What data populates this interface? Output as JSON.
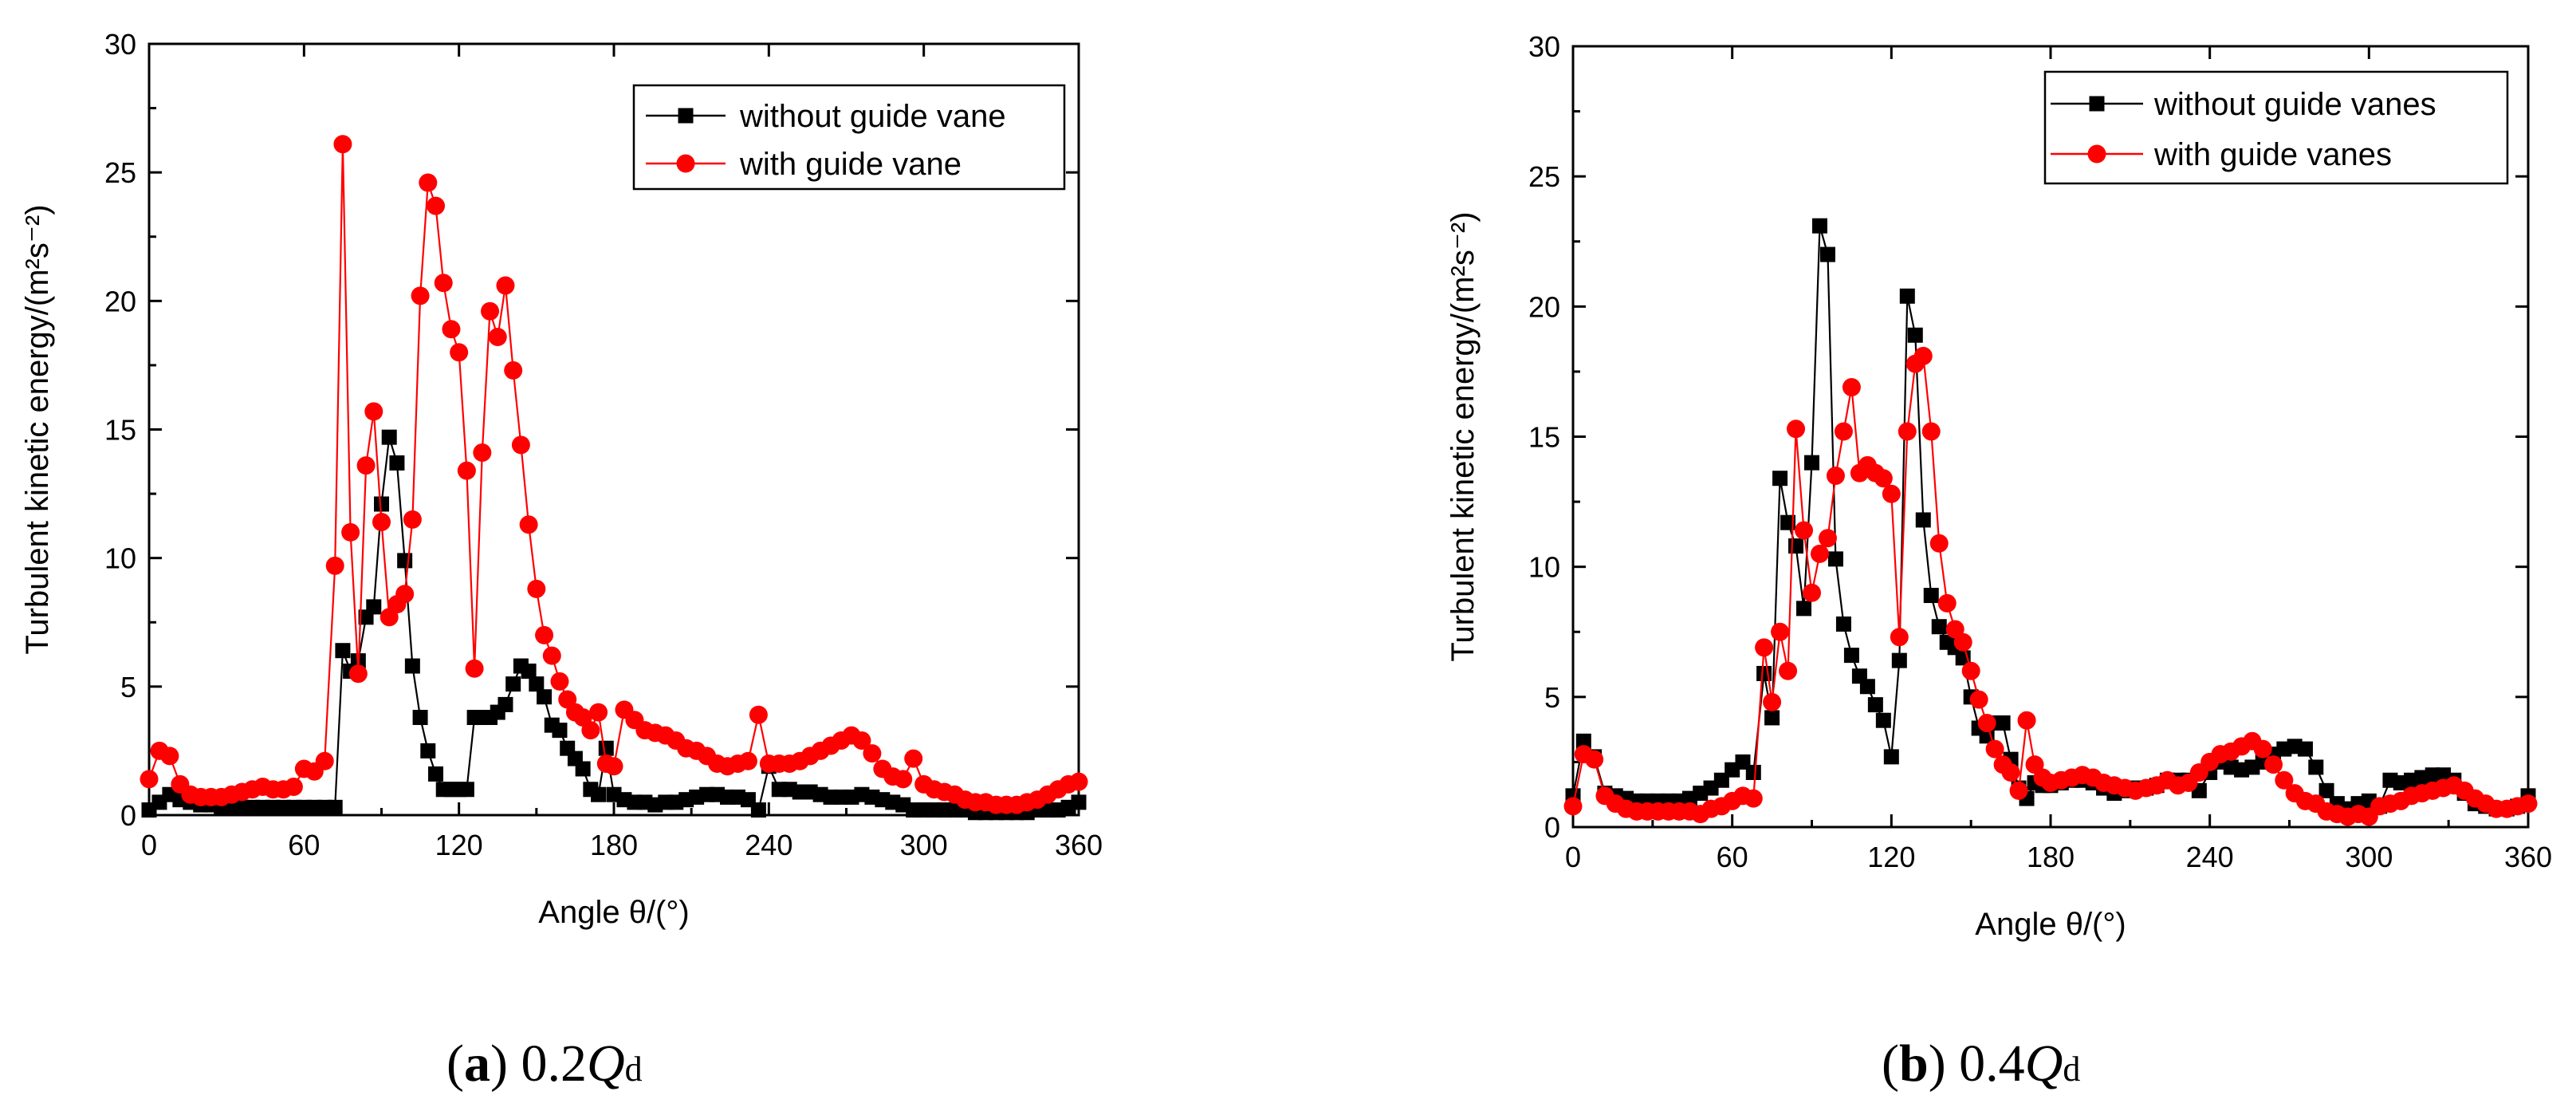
{
  "chart_data": [
    {
      "type": "line",
      "panel": "a",
      "caption": {
        "letter": "a",
        "prefix": "0.2",
        "q": "Q",
        "sub": "d"
      },
      "xlabel": "Angle θ/(°)",
      "ylabel": "Turbulent kinetic energy/(m²s⁻²)",
      "xlim": [
        0,
        360
      ],
      "ylim": [
        0,
        30
      ],
      "xticks": [
        "0",
        "60",
        "120",
        "180",
        "240",
        "300",
        "360"
      ],
      "yticks": [
        "0",
        "5",
        "10",
        "15",
        "20",
        "25",
        "30"
      ],
      "legend_position": "top-right",
      "series": [
        {
          "name": "without guide vane",
          "color": "#000000",
          "marker": "square",
          "x": [
            0,
            4,
            8,
            12,
            16,
            20,
            24,
            28,
            32,
            36,
            40,
            44,
            48,
            52,
            56,
            60,
            64,
            68,
            72,
            75,
            78,
            81,
            84,
            87,
            90,
            93,
            96,
            99,
            102,
            105,
            108,
            111,
            114,
            117,
            120,
            123,
            126,
            129,
            132,
            135,
            138,
            141,
            144,
            147,
            150,
            153,
            156,
            159,
            162,
            165,
            168,
            171,
            174,
            177,
            180,
            184,
            188,
            192,
            196,
            200,
            204,
            208,
            212,
            216,
            220,
            224,
            228,
            232,
            236,
            240,
            244,
            248,
            252,
            256,
            260,
            264,
            268,
            272,
            276,
            280,
            284,
            288,
            292,
            296,
            300,
            304,
            308,
            312,
            316,
            320,
            324,
            328,
            332,
            336,
            340,
            344,
            348,
            352,
            356,
            360
          ],
          "y": [
            0.2,
            0.5,
            0.8,
            0.6,
            0.5,
            0.4,
            0.4,
            0.3,
            0.3,
            0.3,
            0.3,
            0.3,
            0.3,
            0.3,
            0.3,
            0.3,
            0.3,
            0.3,
            0.3,
            6.4,
            5.6,
            6.0,
            7.7,
            8.1,
            12.1,
            14.7,
            13.7,
            9.9,
            5.8,
            3.8,
            2.5,
            1.6,
            1.0,
            1.0,
            1.0,
            1.0,
            3.8,
            3.8,
            3.8,
            4.0,
            4.3,
            5.1,
            5.8,
            5.6,
            5.1,
            4.6,
            3.5,
            3.3,
            2.6,
            2.2,
            1.8,
            1.0,
            0.8,
            2.6,
            0.8,
            0.6,
            0.5,
            0.5,
            0.4,
            0.5,
            0.5,
            0.6,
            0.7,
            0.8,
            0.8,
            0.7,
            0.7,
            0.6,
            0.2,
            1.9,
            1.0,
            1.0,
            0.9,
            0.9,
            0.8,
            0.7,
            0.7,
            0.7,
            0.8,
            0.7,
            0.6,
            0.5,
            0.4,
            0.2,
            0.2,
            0.2,
            0.2,
            0.2,
            0.2,
            0.1,
            0.1,
            0.1,
            0.1,
            0.1,
            0.1,
            0.2,
            0.2,
            0.2,
            0.3,
            0.5
          ]
        },
        {
          "name": "with guide vane",
          "color": "#ff0000",
          "marker": "circle",
          "x": [
            0,
            4,
            8,
            12,
            16,
            20,
            24,
            28,
            32,
            36,
            40,
            44,
            48,
            52,
            56,
            60,
            64,
            68,
            72,
            75,
            78,
            81,
            84,
            87,
            90,
            93,
            96,
            99,
            102,
            105,
            108,
            111,
            114,
            117,
            120,
            123,
            126,
            129,
            132,
            135,
            138,
            141,
            144,
            147,
            150,
            153,
            156,
            159,
            162,
            165,
            168,
            171,
            174,
            177,
            180,
            184,
            188,
            192,
            196,
            200,
            204,
            208,
            212,
            216,
            220,
            224,
            228,
            232,
            236,
            240,
            244,
            248,
            252,
            256,
            260,
            264,
            268,
            272,
            276,
            280,
            284,
            288,
            292,
            296,
            300,
            304,
            308,
            312,
            316,
            320,
            324,
            328,
            332,
            336,
            340,
            344,
            348,
            352,
            356,
            360
          ],
          "y": [
            1.4,
            2.5,
            2.3,
            1.2,
            0.8,
            0.7,
            0.7,
            0.7,
            0.8,
            0.9,
            1.0,
            1.1,
            1.0,
            1.0,
            1.1,
            1.8,
            1.7,
            2.1,
            9.7,
            26.1,
            11.0,
            5.5,
            13.6,
            15.7,
            11.4,
            7.7,
            8.2,
            8.6,
            11.5,
            20.2,
            24.6,
            23.7,
            20.7,
            18.9,
            18.0,
            13.4,
            5.7,
            14.1,
            19.6,
            18.6,
            20.6,
            17.3,
            14.4,
            11.3,
            8.8,
            7.0,
            6.2,
            5.2,
            4.5,
            4.0,
            3.8,
            3.3,
            4.0,
            2.0,
            1.9,
            4.1,
            3.7,
            3.3,
            3.2,
            3.1,
            2.9,
            2.6,
            2.5,
            2.3,
            2.0,
            1.9,
            2.0,
            2.1,
            3.9,
            2.0,
            2.0,
            2.0,
            2.1,
            2.3,
            2.5,
            2.7,
            2.9,
            3.1,
            2.9,
            2.4,
            1.8,
            1.5,
            1.4,
            2.2,
            1.2,
            1.0,
            0.9,
            0.8,
            0.6,
            0.5,
            0.5,
            0.4,
            0.4,
            0.4,
            0.5,
            0.6,
            0.8,
            1.0,
            1.2,
            1.3
          ]
        }
      ]
    },
    {
      "type": "line",
      "panel": "b",
      "caption": {
        "letter": "b",
        "prefix": "0.4",
        "q": "Q",
        "sub": "d"
      },
      "xlabel": "Angle θ/(°)",
      "ylabel": "Turbulent kinetic energy/(m²s⁻²)",
      "xlim": [
        0,
        360
      ],
      "ylim": [
        0,
        30
      ],
      "xticks": [
        "0",
        "60",
        "120",
        "180",
        "240",
        "300",
        "360"
      ],
      "yticks": [
        "0",
        "5",
        "10",
        "15",
        "20",
        "25",
        "30"
      ],
      "legend_position": "top-right",
      "series": [
        {
          "name": "without guide vanes",
          "color": "#000000",
          "marker": "square",
          "x": [
            0,
            4,
            8,
            12,
            16,
            20,
            24,
            28,
            32,
            36,
            40,
            44,
            48,
            52,
            56,
            60,
            64,
            68,
            72,
            75,
            78,
            81,
            84,
            87,
            90,
            93,
            96,
            99,
            102,
            105,
            108,
            111,
            114,
            117,
            120,
            123,
            126,
            129,
            132,
            135,
            138,
            141,
            144,
            147,
            150,
            153,
            156,
            159,
            162,
            165,
            168,
            171,
            174,
            177,
            180,
            184,
            188,
            192,
            196,
            200,
            204,
            208,
            212,
            216,
            220,
            224,
            228,
            232,
            236,
            240,
            244,
            248,
            252,
            256,
            260,
            264,
            268,
            272,
            276,
            280,
            284,
            288,
            292,
            296,
            300,
            304,
            308,
            312,
            316,
            320,
            324,
            328,
            332,
            336,
            340,
            344,
            348,
            352,
            356,
            360
          ],
          "y": [
            1.2,
            3.3,
            2.7,
            1.3,
            1.2,
            1.1,
            1.0,
            1.0,
            1.0,
            1.0,
            1.0,
            1.1,
            1.3,
            1.5,
            1.8,
            2.2,
            2.5,
            2.1,
            5.9,
            4.2,
            13.4,
            11.7,
            10.8,
            8.4,
            14.0,
            23.1,
            22.0,
            10.3,
            7.8,
            6.6,
            5.8,
            5.4,
            4.7,
            4.1,
            2.7,
            6.4,
            20.4,
            18.9,
            11.8,
            8.9,
            7.7,
            7.1,
            6.9,
            6.5,
            5.0,
            3.8,
            3.5,
            4.0,
            4.0,
            2.6,
            1.5,
            1.1,
            1.7,
            1.6,
            1.6,
            1.7,
            1.8,
            1.8,
            1.7,
            1.5,
            1.3,
            1.4,
            1.5,
            1.5,
            1.6,
            1.8,
            1.8,
            1.8,
            1.4,
            2.1,
            2.5,
            2.3,
            2.2,
            2.3,
            2.5,
            2.8,
            3.0,
            3.1,
            3.0,
            2.3,
            1.4,
            0.9,
            0.7,
            0.9,
            1.0,
            0.8,
            1.8,
            1.7,
            1.8,
            1.9,
            2.0,
            2.0,
            1.8,
            1.3,
            0.9,
            0.8,
            0.7,
            0.7,
            0.8,
            1.2
          ]
        },
        {
          "name": "with guide vanes",
          "color": "#ff0000",
          "marker": "circle",
          "x": [
            0,
            4,
            8,
            12,
            16,
            20,
            24,
            28,
            32,
            36,
            40,
            44,
            48,
            52,
            56,
            60,
            64,
            68,
            72,
            75,
            78,
            81,
            84,
            87,
            90,
            93,
            96,
            99,
            102,
            105,
            108,
            111,
            114,
            117,
            120,
            123,
            126,
            129,
            132,
            135,
            138,
            141,
            144,
            147,
            150,
            153,
            156,
            159,
            162,
            165,
            168,
            171,
            174,
            177,
            180,
            184,
            188,
            192,
            196,
            200,
            204,
            208,
            212,
            216,
            220,
            224,
            228,
            232,
            236,
            240,
            244,
            248,
            252,
            256,
            260,
            264,
            268,
            272,
            276,
            280,
            284,
            288,
            292,
            296,
            300,
            304,
            308,
            312,
            316,
            320,
            324,
            328,
            332,
            336,
            340,
            344,
            348,
            352,
            356,
            360
          ],
          "y": [
            0.8,
            2.8,
            2.6,
            1.2,
            0.9,
            0.7,
            0.6,
            0.6,
            0.6,
            0.6,
            0.6,
            0.6,
            0.5,
            0.7,
            0.8,
            1.0,
            1.2,
            1.1,
            6.9,
            4.8,
            7.5,
            6.0,
            15.3,
            11.4,
            9.0,
            10.5,
            11.1,
            13.5,
            15.2,
            16.9,
            13.6,
            13.9,
            13.6,
            13.4,
            12.8,
            7.3,
            15.2,
            17.8,
            18.1,
            15.2,
            10.9,
            8.6,
            7.6,
            7.1,
            6.0,
            4.9,
            4.0,
            3.0,
            2.4,
            2.1,
            1.4,
            4.1,
            2.4,
            1.9,
            1.7,
            1.8,
            1.9,
            2.0,
            1.9,
            1.7,
            1.6,
            1.5,
            1.4,
            1.5,
            1.6,
            1.8,
            1.6,
            1.7,
            2.1,
            2.5,
            2.8,
            2.9,
            3.1,
            3.3,
            3.0,
            2.4,
            1.8,
            1.3,
            1.0,
            0.9,
            0.6,
            0.5,
            0.4,
            0.5,
            0.4,
            0.8,
            0.9,
            1.0,
            1.2,
            1.3,
            1.4,
            1.5,
            1.6,
            1.4,
            1.1,
            0.9,
            0.7,
            0.7,
            0.8,
            0.9
          ]
        }
      ]
    }
  ]
}
